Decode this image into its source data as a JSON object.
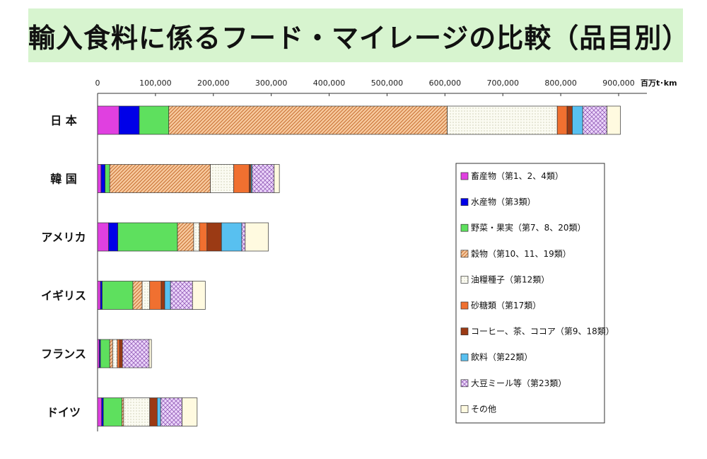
{
  "title": "輸入食料に係るフード・マイレージの比較（品目別）",
  "chart_data": {
    "type": "bar",
    "orientation": "horizontal",
    "stacked": true,
    "unit_label": "百万t･km",
    "xlim": [
      0,
      900000
    ],
    "x_ticks": [
      "0",
      "100,000",
      "200,000",
      "300,000",
      "400,000",
      "500,000",
      "600,000",
      "700,000",
      "800,000",
      "900,000"
    ],
    "categories": [
      "日 本",
      "韓 国",
      "アメリカ",
      "イギリス",
      "フランス",
      "ドイツ"
    ],
    "legend_position": "right",
    "series": [
      {
        "name": "畜産物（第1、2、4類）",
        "color": "#e040e0",
        "pattern": "solid",
        "values": [
          37000,
          6000,
          19000,
          5000,
          3000,
          7000
        ]
      },
      {
        "name": "水産物（第3類）",
        "color": "#0000e8",
        "pattern": "solid",
        "values": [
          35000,
          7000,
          16000,
          3000,
          2000,
          3000
        ]
      },
      {
        "name": "野菜・果実（第7、8、20類）",
        "color": "#5ee05e",
        "pattern": "solid",
        "values": [
          51000,
          8000,
          103000,
          53000,
          16000,
          32000
        ]
      },
      {
        "name": "穀物（第10、11、19類）",
        "color": "#f0a060",
        "pattern": "diag",
        "values": [
          481000,
          174000,
          28000,
          16000,
          5000,
          3000
        ]
      },
      {
        "name": "油糧種子（第12類）",
        "color": "#f4f4e8",
        "pattern": "dots",
        "values": [
          190000,
          40000,
          10000,
          13000,
          8000,
          45000
        ]
      },
      {
        "name": "砂糖類（第17類）",
        "color": "#f07030",
        "pattern": "solid",
        "values": [
          17000,
          27000,
          13000,
          20000,
          4000,
          0
        ]
      },
      {
        "name": "コーヒー、茶、ココア（第9、18類）",
        "color": "#9b3a14",
        "pattern": "solid",
        "values": [
          9000,
          3000,
          25000,
          6000,
          5000,
          13000
        ]
      },
      {
        "name": "飲料（第22類）",
        "color": "#58c0f0",
        "pattern": "solid",
        "values": [
          18000,
          2000,
          35000,
          10000,
          0,
          6000
        ]
      },
      {
        "name": "大豆ミール等（第23類）",
        "color": "#d8b0f0",
        "pattern": "cross",
        "values": [
          42000,
          38000,
          6000,
          38000,
          46000,
          37000
        ]
      },
      {
        "name": "その他",
        "color": "#fffae0",
        "pattern": "solid",
        "values": [
          23000,
          9000,
          40000,
          22000,
          4000,
          26000
        ]
      }
    ]
  }
}
